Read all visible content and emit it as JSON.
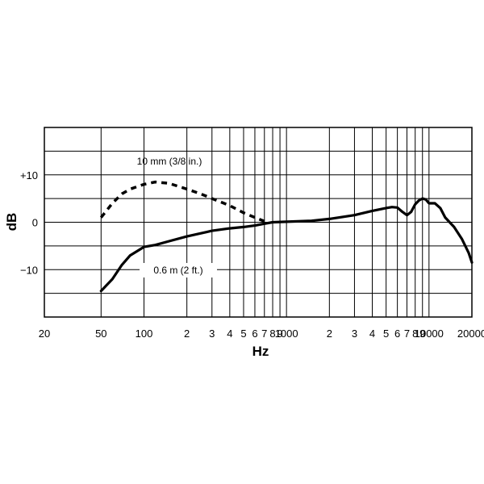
{
  "chart_data": {
    "type": "line",
    "title": "",
    "xlabel": "Hz",
    "ylabel": "dB",
    "x_scale": "log",
    "xlim": [
      20,
      20000
    ],
    "ylim": [
      -20,
      20
    ],
    "grid": true,
    "x_ticks": [
      {
        "value": 20,
        "label": "20"
      },
      {
        "value": 50,
        "label": "50"
      },
      {
        "value": 100,
        "label": "100"
      },
      {
        "value": 200,
        "label": "2"
      },
      {
        "value": 300,
        "label": "3"
      },
      {
        "value": 400,
        "label": "4"
      },
      {
        "value": 500,
        "label": "5"
      },
      {
        "value": 600,
        "label": "6"
      },
      {
        "value": 700,
        "label": "7"
      },
      {
        "value": 800,
        "label": "8"
      },
      {
        "value": 900,
        "label": "9"
      },
      {
        "value": 1000,
        "label": "1000"
      },
      {
        "value": 2000,
        "label": "2"
      },
      {
        "value": 3000,
        "label": "3"
      },
      {
        "value": 4000,
        "label": "4"
      },
      {
        "value": 5000,
        "label": "5"
      },
      {
        "value": 6000,
        "label": "6"
      },
      {
        "value": 7000,
        "label": "7"
      },
      {
        "value": 8000,
        "label": "8"
      },
      {
        "value": 9000,
        "label": "9"
      },
      {
        "value": 10000,
        "label": "10000"
      },
      {
        "value": 20000,
        "label": "20000"
      }
    ],
    "y_ticks": [
      {
        "value": 10,
        "label": "+10"
      },
      {
        "value": 0,
        "label": "0"
      },
      {
        "value": -10,
        "label": "−10"
      }
    ],
    "series": [
      {
        "name": "10 mm (3/8 in.)",
        "style": "dashed",
        "points": [
          [
            50,
            1
          ],
          [
            60,
            4
          ],
          [
            70,
            6
          ],
          [
            80,
            7
          ],
          [
            100,
            8
          ],
          [
            120,
            8.5
          ],
          [
            150,
            8.2
          ],
          [
            200,
            7
          ],
          [
            250,
            6
          ],
          [
            300,
            5
          ],
          [
            400,
            3.5
          ],
          [
            500,
            2
          ],
          [
            600,
            1
          ],
          [
            700,
            0.2
          ]
        ]
      },
      {
        "name": "0.6 m (2 ft.)",
        "style": "solid",
        "points": [
          [
            50,
            -14.5
          ],
          [
            60,
            -12
          ],
          [
            70,
            -9
          ],
          [
            80,
            -7
          ],
          [
            100,
            -5.2
          ],
          [
            120,
            -4.8
          ],
          [
            150,
            -4
          ],
          [
            200,
            -3
          ],
          [
            300,
            -1.8
          ],
          [
            400,
            -1.3
          ],
          [
            500,
            -1
          ],
          [
            600,
            -0.7
          ],
          [
            700,
            -0.3
          ],
          [
            800,
            0
          ],
          [
            1000,
            0.1
          ],
          [
            1500,
            0.3
          ],
          [
            2000,
            0.7
          ],
          [
            3000,
            1.5
          ],
          [
            4000,
            2.4
          ],
          [
            5000,
            3
          ],
          [
            5500,
            3.2
          ],
          [
            6000,
            3.1
          ],
          [
            6500,
            2.2
          ],
          [
            7000,
            1.5
          ],
          [
            7500,
            2.2
          ],
          [
            8000,
            3.8
          ],
          [
            8500,
            4.6
          ],
          [
            9000,
            5
          ],
          [
            9500,
            4.8
          ],
          [
            10000,
            4
          ],
          [
            11000,
            4
          ],
          [
            12000,
            3
          ],
          [
            13000,
            1
          ],
          [
            15000,
            -1
          ],
          [
            17000,
            -3.5
          ],
          [
            19000,
            -6.5
          ],
          [
            20000,
            -8.5
          ]
        ]
      }
    ]
  }
}
